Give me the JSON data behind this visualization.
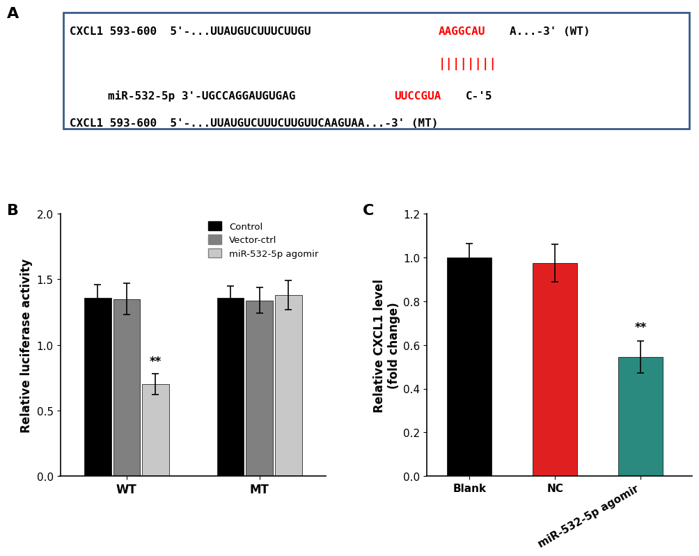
{
  "panel_A": {
    "line1_prefix": "CXCL1 593-600  5'-...UUAUGUCUUUCUUGU",
    "line1_red": "AAGGCAU",
    "line1_suffix": "A...-3' (WT)",
    "bars": "||||||||",
    "line2_prefix": "miR-532-5p 3'-UGCCAGGAUGUGAG",
    "line2_red": "UUCCGUA",
    "line2_suffix": "C-'5",
    "line3": "CXCL1 593-600  5'-...UUAUGUCUUUCUUGUUCAAGUAA...-3' (MT)"
  },
  "panel_B": {
    "groups": [
      "WT",
      "MT"
    ],
    "series": [
      "Control",
      "Vector-ctrl",
      "miR-532-5p agomir"
    ],
    "colors": [
      "#000000",
      "#808080",
      "#c8c8c8"
    ],
    "values": [
      [
        1.36,
        1.35,
        0.7
      ],
      [
        1.36,
        1.34,
        1.38
      ]
    ],
    "errors": [
      [
        0.1,
        0.12,
        0.08
      ],
      [
        0.09,
        0.1,
        0.11
      ]
    ],
    "ylabel": "Relative luciferase activity",
    "ylim": [
      0.0,
      2.0
    ],
    "yticks": [
      0.0,
      0.5,
      1.0,
      1.5,
      2.0
    ],
    "significance": {
      "group": 0,
      "bar": 2,
      "text": "**"
    }
  },
  "panel_C": {
    "categories": [
      "Blank",
      "NC",
      "miR-532-5p agomir"
    ],
    "colors": [
      "#000000",
      "#e02020",
      "#2a8a80"
    ],
    "values": [
      1.0,
      0.975,
      0.545
    ],
    "errors": [
      0.065,
      0.085,
      0.072
    ],
    "ylabel": "Relative CXCL1 level\n(fold change)",
    "ylim": [
      0.0,
      1.2
    ],
    "yticks": [
      0.0,
      0.2,
      0.4,
      0.6,
      0.8,
      1.0,
      1.2
    ],
    "significance": {
      "bar": 2,
      "text": "**"
    }
  },
  "label_fontsize": 16,
  "tick_fontsize": 11,
  "axis_label_fontsize": 12,
  "background_color": "#ffffff"
}
